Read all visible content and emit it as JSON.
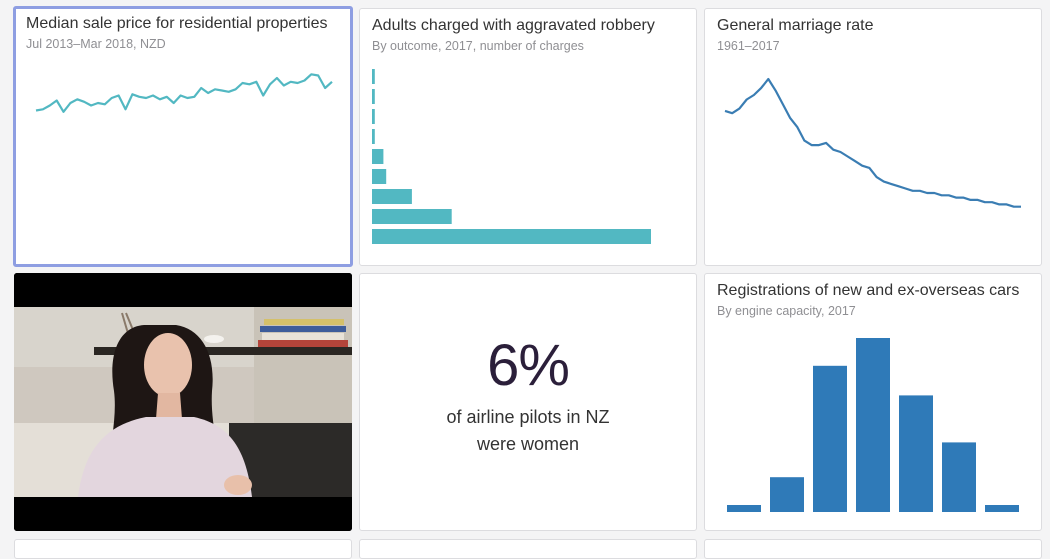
{
  "cards": {
    "median_price": {
      "title": "Median sale price for residential properties",
      "subtitle": "Jul 2013–Mar 2018, NZD"
    },
    "robbery": {
      "title": "Adults charged with aggravated robbery",
      "subtitle": "By outcome, 2017, number of charges"
    },
    "marriage": {
      "title": "General marriage rate",
      "subtitle": "1961–2017"
    },
    "pilots": {
      "value": "6%",
      "line1": "of airline pilots in NZ",
      "line2": "were women"
    },
    "cars": {
      "title": "Registrations of new and ex-overseas cars",
      "subtitle": "By engine capacity, 2017"
    }
  },
  "colors": {
    "teal": "#52b8c2",
    "blue": "#3a7db3",
    "bar_blue": "#2f7ab8",
    "selected_border": "#8e9ee2"
  },
  "chart_data": [
    {
      "type": "line",
      "id": "median_price",
      "values": [
        30,
        31,
        34,
        38,
        29,
        36,
        39,
        37,
        34,
        36,
        35,
        40,
        42,
        31,
        43,
        41,
        40,
        42,
        39,
        41,
        36,
        42,
        40,
        41,
        48,
        44,
        47,
        46,
        45,
        47,
        52,
        51,
        53,
        42,
        51,
        56,
        50,
        53,
        52,
        54,
        59,
        58,
        48,
        53
      ]
    },
    {
      "type": "bar",
      "id": "robbery",
      "orientation": "horizontal",
      "values": [
        1,
        1,
        1,
        1,
        4,
        5,
        14,
        28,
        98
      ]
    },
    {
      "type": "line",
      "id": "marriage",
      "values": [
        52,
        51,
        53,
        57,
        59,
        62,
        66,
        61,
        55,
        49,
        45,
        39,
        37,
        37,
        38,
        35,
        34,
        32,
        30,
        28,
        27,
        23,
        21,
        20,
        19,
        18,
        17,
        17,
        16,
        16,
        15,
        15,
        14,
        14,
        13,
        13,
        12,
        12,
        11,
        11,
        10,
        10
      ]
    },
    {
      "type": "bar",
      "id": "cars",
      "values": [
        4,
        20,
        84,
        100,
        67,
        40,
        4
      ]
    }
  ]
}
